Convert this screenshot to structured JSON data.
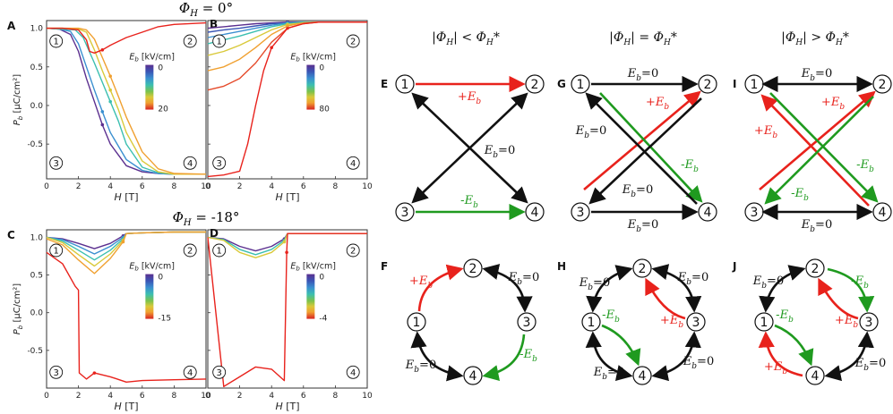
{
  "figure": {
    "row_titles": [
      "Φ_H = 0°",
      "Φ_H = -18°"
    ],
    "phi_symbol": "Φ",
    "phi_sub": "H",
    "row1_value": " = 0°",
    "row2_value": " = -18°",
    "x_label": "H [T]",
    "y_label": "P_b [μC/cm²]",
    "x_ticks": [
      "0",
      "2",
      "4",
      "6",
      "8",
      "10"
    ],
    "top_y_ticks": [
      "1.0",
      "0.5",
      "0.0",
      "-0.5"
    ],
    "bottom_y_ticks": [
      "1.0",
      "0.5",
      "0.0",
      "-0.5"
    ],
    "legend_title": "E_b [kV/cm]",
    "legend_A": [
      "0",
      "20"
    ],
    "legend_B": [
      "0",
      "80"
    ],
    "legend_C": [
      "0",
      "-15"
    ],
    "legend_D": [
      "0",
      "-4"
    ],
    "state_labels": [
      "1",
      "2",
      "3",
      "4"
    ],
    "panel_letters": [
      "A",
      "B",
      "C",
      "D",
      "E",
      "F",
      "G",
      "H",
      "I",
      "J"
    ],
    "col_headers": [
      "|Φ_H| < Φ_H*",
      "|Φ_H| = Φ_H*",
      "|Φ_H| > Φ_H*"
    ],
    "edge_labels": {
      "plus": "+E_b",
      "minus": "-E_b",
      "zero": "E_b=0"
    },
    "colors": {
      "red": "#e8221c",
      "green": "#1f9a1f",
      "black": "#111111",
      "gradient": [
        "#5b2f8f",
        "#3a55b5",
        "#3a8fd0",
        "#3bbfb0",
        "#7dc24a",
        "#d9c93a",
        "#f0a030",
        "#e54a2a",
        "#d62222"
      ]
    }
  },
  "chart_data": [
    {
      "panel": "A",
      "type": "line",
      "xlabel": "H [T]",
      "ylabel": "P_b [μC/cm²]",
      "xlim": [
        0,
        10
      ],
      "ylim": [
        -0.95,
        1.1
      ],
      "legend_title": "E_b [kV/cm]",
      "colorbar_range": [
        0,
        20
      ],
      "series": [
        {
          "x": [
            0,
            0.8,
            1.5,
            2,
            2.5,
            3,
            3.5,
            4,
            5,
            6,
            7,
            8,
            10
          ],
          "y": [
            1.0,
            0.99,
            0.92,
            0.7,
            0.35,
            0.05,
            -0.25,
            -0.5,
            -0.78,
            -0.86,
            -0.88,
            -0.89,
            -0.89
          ]
        },
        {
          "x": [
            0,
            0.8,
            1.5,
            2,
            2.5,
            3,
            3.5,
            4,
            5,
            6,
            7,
            8,
            10
          ],
          "y": [
            1.0,
            0.99,
            0.96,
            0.8,
            0.5,
            0.2,
            -0.08,
            -0.35,
            -0.7,
            -0.84,
            -0.88,
            -0.89,
            -0.89
          ]
        },
        {
          "x": [
            0,
            1,
            1.8,
            2.3,
            3,
            3.5,
            4,
            4.5,
            5,
            6,
            7,
            8,
            10
          ],
          "y": [
            1.0,
            0.99,
            0.98,
            0.88,
            0.55,
            0.3,
            0.05,
            -0.2,
            -0.5,
            -0.8,
            -0.87,
            -0.89,
            -0.89
          ]
        },
        {
          "x": [
            0,
            1,
            2,
            2.5,
            3,
            3.5,
            4,
            4.5,
            5,
            6,
            7,
            8,
            10
          ],
          "y": [
            1.0,
            1.0,
            0.99,
            0.95,
            0.72,
            0.45,
            0.2,
            -0.05,
            -0.35,
            -0.72,
            -0.86,
            -0.89,
            -0.89
          ]
        },
        {
          "x": [
            0,
            1,
            2,
            2.5,
            3,
            3.5,
            4,
            4.5,
            5,
            6,
            7,
            8,
            10
          ],
          "y": [
            1.0,
            1.0,
            1.0,
            0.98,
            0.86,
            0.62,
            0.38,
            0.12,
            -0.15,
            -0.6,
            -0.82,
            -0.88,
            -0.89
          ]
        },
        {
          "x": [
            0,
            1,
            2,
            2.5,
            2.7,
            3,
            3.5,
            4,
            5,
            6,
            7,
            8,
            10
          ],
          "y": [
            1.0,
            1.0,
            0.98,
            0.85,
            0.7,
            0.68,
            0.72,
            0.78,
            0.88,
            0.95,
            1.02,
            1.05,
            1.07
          ]
        }
      ]
    },
    {
      "panel": "B",
      "type": "line",
      "xlabel": "H [T]",
      "xlim": [
        0,
        10
      ],
      "ylim": [
        -0.95,
        1.1
      ],
      "legend_title": "E_b [kV/cm]",
      "colorbar_range": [
        0,
        80
      ],
      "series": [
        {
          "x": [
            0,
            1,
            2,
            3,
            4,
            5,
            6,
            7,
            8,
            10
          ],
          "y": [
            1.0,
            1.02,
            1.04,
            1.06,
            1.07,
            1.08,
            1.08,
            1.08,
            1.08,
            1.08
          ]
        },
        {
          "x": [
            0,
            1,
            2,
            3,
            4,
            5,
            6,
            7,
            8,
            10
          ],
          "y": [
            0.95,
            0.98,
            1.0,
            1.03,
            1.06,
            1.07,
            1.08,
            1.08,
            1.08,
            1.08
          ]
        },
        {
          "x": [
            0,
            1,
            2,
            3,
            4,
            5,
            6,
            7,
            8,
            10
          ],
          "y": [
            0.88,
            0.92,
            0.96,
            1.0,
            1.04,
            1.07,
            1.08,
            1.08,
            1.08,
            1.08
          ]
        },
        {
          "x": [
            0,
            1,
            2,
            3,
            4,
            5,
            6,
            7,
            8,
            10
          ],
          "y": [
            0.8,
            0.85,
            0.9,
            0.96,
            1.02,
            1.06,
            1.08,
            1.08,
            1.08,
            1.08
          ]
        },
        {
          "x": [
            0,
            1,
            2,
            3,
            4,
            5,
            6,
            7,
            8,
            10
          ],
          "y": [
            0.65,
            0.7,
            0.78,
            0.88,
            0.98,
            1.05,
            1.07,
            1.08,
            1.08,
            1.08
          ]
        },
        {
          "x": [
            0,
            1,
            2,
            3,
            4,
            5,
            6,
            7,
            8,
            10
          ],
          "y": [
            0.45,
            0.5,
            0.6,
            0.75,
            0.92,
            1.03,
            1.07,
            1.08,
            1.08,
            1.08
          ]
        },
        {
          "x": [
            0,
            1,
            2,
            3,
            4,
            5,
            6,
            7,
            8,
            10
          ],
          "y": [
            0.2,
            0.25,
            0.35,
            0.55,
            0.82,
            1.0,
            1.06,
            1.08,
            1.08,
            1.08
          ]
        },
        {
          "x": [
            0,
            1,
            2,
            2.5,
            3,
            3.5,
            4,
            5,
            6,
            7,
            8,
            10
          ],
          "y": [
            -0.92,
            -0.9,
            -0.85,
            -0.5,
            0.0,
            0.45,
            0.75,
            1.0,
            1.06,
            1.08,
            1.08,
            1.08
          ]
        }
      ]
    },
    {
      "panel": "C",
      "type": "line",
      "xlabel": "H [T]",
      "ylabel": "P_b [μC/cm²]",
      "xlim": [
        0,
        10
      ],
      "ylim": [
        -1.0,
        1.1
      ],
      "legend_title": "E_b [kV/cm]",
      "colorbar_range": [
        0,
        -15
      ],
      "series": [
        {
          "x": [
            0,
            1,
            2,
            3,
            4,
            4.8,
            5,
            6,
            8,
            10
          ],
          "y": [
            1.0,
            0.98,
            0.92,
            0.85,
            0.92,
            1.02,
            1.05,
            1.06,
            1.07,
            1.07
          ]
        },
        {
          "x": [
            0,
            1,
            2,
            3,
            4,
            4.8,
            5,
            6,
            8,
            10
          ],
          "y": [
            1.0,
            0.97,
            0.88,
            0.78,
            0.88,
            1.0,
            1.05,
            1.06,
            1.07,
            1.07
          ]
        },
        {
          "x": [
            0,
            1,
            2,
            3,
            4,
            4.8,
            5,
            6,
            8,
            10
          ],
          "y": [
            1.0,
            0.95,
            0.83,
            0.7,
            0.83,
            0.98,
            1.05,
            1.06,
            1.07,
            1.07
          ]
        },
        {
          "x": [
            0,
            1,
            2,
            3,
            4,
            4.8,
            5,
            6,
            8,
            10
          ],
          "y": [
            1.0,
            0.93,
            0.77,
            0.62,
            0.78,
            0.96,
            1.05,
            1.06,
            1.07,
            1.07
          ]
        },
        {
          "x": [
            0,
            1,
            2,
            3,
            4,
            4.8,
            5,
            6,
            8,
            10
          ],
          "y": [
            0.98,
            0.9,
            0.7,
            0.52,
            0.72,
            0.94,
            1.05,
            1.06,
            1.07,
            1.07
          ]
        },
        {
          "x": [
            0,
            1,
            1.8,
            2.0,
            2.05,
            2.5,
            3,
            4,
            5,
            6,
            8,
            10
          ],
          "y": [
            0.8,
            0.65,
            0.35,
            0.3,
            -0.8,
            -0.88,
            -0.8,
            -0.85,
            -0.92,
            -0.9,
            -0.89,
            -0.88
          ]
        }
      ]
    },
    {
      "panel": "D",
      "type": "line",
      "xlabel": "H [T]",
      "xlim": [
        0,
        10
      ],
      "ylim": [
        -1.0,
        1.1
      ],
      "legend_title": "E_b [kV/cm]",
      "colorbar_range": [
        0,
        -4
      ],
      "series": [
        {
          "x": [
            0,
            1,
            2,
            3,
            4,
            4.8,
            5,
            6,
            8,
            10
          ],
          "y": [
            1.0,
            0.98,
            0.88,
            0.82,
            0.88,
            0.98,
            1.05,
            1.05,
            1.05,
            1.05
          ]
        },
        {
          "x": [
            0,
            1,
            2,
            3,
            4,
            4.8,
            5,
            6,
            8,
            10
          ],
          "y": [
            1.0,
            0.97,
            0.84,
            0.77,
            0.84,
            0.96,
            1.05,
            1.05,
            1.05,
            1.05
          ]
        },
        {
          "x": [
            0,
            1,
            2,
            3,
            4,
            4.8,
            5,
            6,
            8,
            10
          ],
          "y": [
            1.0,
            0.96,
            0.8,
            0.73,
            0.8,
            0.94,
            1.05,
            1.05,
            1.05,
            1.05
          ]
        },
        {
          "x": [
            0,
            1,
            2,
            3,
            4,
            4.8,
            4.95,
            5.0,
            5.5,
            6,
            8,
            10
          ],
          "y": [
            1.0,
            -0.98,
            -0.85,
            -0.72,
            -0.75,
            -0.9,
            0.8,
            1.05,
            1.05,
            1.05,
            1.05,
            1.05
          ]
        }
      ]
    }
  ]
}
